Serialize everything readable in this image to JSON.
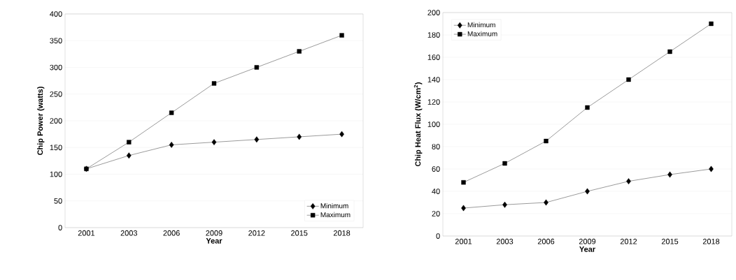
{
  "chart_data": [
    {
      "type": "line",
      "xlabel": "Year",
      "ylabel": "Chip Power (watts)",
      "categories": [
        "2001",
        "2003",
        "2006",
        "2009",
        "2012",
        "2015",
        "2018"
      ],
      "ylim": [
        0,
        400
      ],
      "yticks": [
        0,
        50,
        100,
        150,
        200,
        250,
        300,
        350,
        400
      ],
      "grid": "y",
      "legend": "bottom right",
      "series": [
        {
          "name": "Minimum",
          "color": "#000000",
          "marker": "diamond",
          "values": [
            110,
            135,
            155,
            160,
            165,
            170,
            175
          ]
        },
        {
          "name": "Maximum",
          "color": "#000000",
          "marker": "square",
          "values": [
            110,
            160,
            215,
            270,
            300,
            330,
            360
          ]
        }
      ]
    },
    {
      "type": "line",
      "xlabel": "Year",
      "ylabel": "Chip Heat Flux (W/cm$^{2}$)",
      "categories": [
        "2001",
        "2003",
        "2006",
        "2009",
        "2012",
        "2015",
        "2018"
      ],
      "ylim": [
        0,
        200
      ],
      "yticks": [
        0,
        20,
        40,
        60,
        80,
        100,
        120,
        140,
        160,
        180,
        200
      ],
      "grid": "y",
      "legend": "top left",
      "series": [
        {
          "name": "Minimum",
          "color": "#000000",
          "marker": "diamond",
          "values": [
            25,
            28,
            30,
            40,
            49,
            55,
            60
          ]
        },
        {
          "name": "Maximum",
          "color": "#000000",
          "marker": "square",
          "values": [
            48,
            65,
            85,
            115,
            140,
            165,
            190
          ]
        }
      ]
    }
  ]
}
